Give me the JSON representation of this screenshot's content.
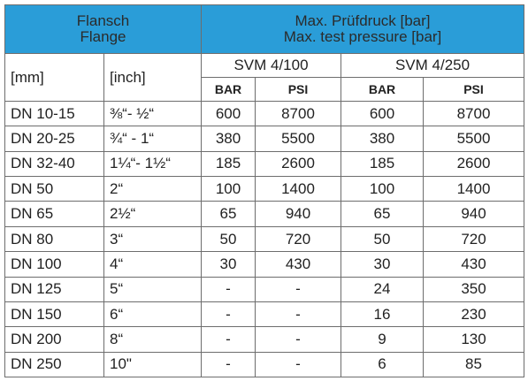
{
  "header": {
    "flange_de": "Flansch",
    "flange_en": "Flange",
    "pressure_de": "Max. Prüfdruck [bar]",
    "pressure_en": "Max. test pressure [bar]",
    "mm": "[mm]",
    "inch": "[inch]",
    "models": [
      "SVM 4/100",
      "SVM 4/250"
    ],
    "units": [
      "BAR",
      "PSI",
      "BAR",
      "PSI"
    ]
  },
  "table": {
    "rows": [
      [
        "DN 10-15",
        "⅜“- ½“",
        600,
        8700,
        600,
        8700
      ],
      [
        "DN 20-25",
        "¾“ - 1“",
        380,
        5500,
        380,
        5500
      ],
      [
        "DN 32-40",
        "1¼“- 1½“",
        185,
        2600,
        185,
        2600
      ],
      [
        "DN 50",
        "2“",
        100,
        1400,
        100,
        1400
      ],
      [
        "DN 65",
        "2½“",
        65,
        940,
        65,
        940
      ],
      [
        "DN 80",
        "3“",
        50,
        720,
        50,
        720
      ],
      [
        "DN 100",
        "4“",
        30,
        430,
        30,
        430
      ],
      [
        "DN 125",
        "5“",
        "-",
        "-",
        24,
        350
      ],
      [
        "DN 150",
        "6“",
        "-",
        "-",
        16,
        230
      ],
      [
        "DN 200",
        "8“",
        "-",
        "-",
        9,
        130
      ],
      [
        "DN 250",
        "10\"",
        "-",
        "-",
        6,
        85
      ]
    ]
  }
}
